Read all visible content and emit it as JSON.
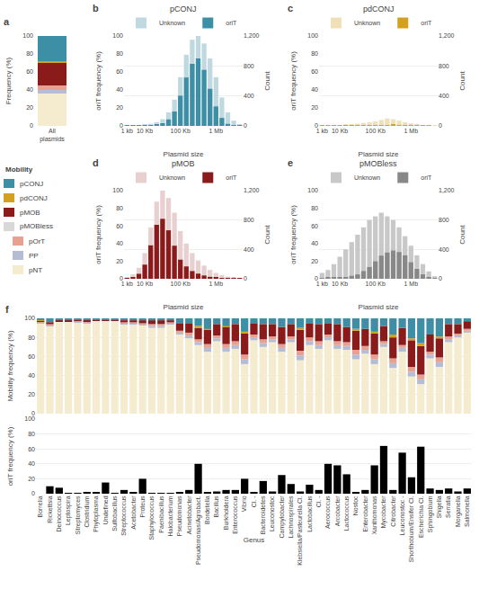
{
  "chart_data": [
    {
      "type": "bar",
      "stacked": true,
      "annotations": [
        "a"
      ],
      "categories": [
        "All\nplasmids"
      ],
      "ylabel": "Frequency (%)",
      "ylim": [
        0,
        100
      ],
      "yticks": [
        0,
        20,
        40,
        60,
        80,
        100
      ],
      "grid": false,
      "series": [
        {
          "name": "pNT",
          "color": "#f5ecd0",
          "values": [
            36
          ]
        },
        {
          "name": "PP",
          "color": "#b5bdd4",
          "values": [
            4
          ]
        },
        {
          "name": "pOrT",
          "color": "#e8a090",
          "values": [
            5
          ]
        },
        {
          "name": "pMOB",
          "color": "#8b1a1a",
          "values": [
            25
          ]
        },
        {
          "name": "pdCONJ",
          "color": "#d4a020",
          "values": [
            2
          ]
        },
        {
          "name": "pCONJ",
          "color": "#3d8fa5",
          "values": [
            28
          ]
        }
      ]
    },
    {
      "type": "legend",
      "title": "Mobility",
      "series": [
        {
          "name": "pCONJ",
          "color": "#3d8fa5"
        },
        {
          "name": "pdCONJ",
          "color": "#d4a020"
        },
        {
          "name": "pMOB",
          "color": "#8b1a1a"
        },
        {
          "name": "pMOBless",
          "color": "#d8d8d8",
          "series": [
            {
              "name": "pOrT",
              "color": "#e8a090"
            },
            {
              "name": "PP",
              "color": "#b5bdd4"
            },
            {
              "name": "pNT",
              "color": "#f5ecd0"
            }
          ]
        }
      ]
    },
    {
      "type": "bar",
      "stacked": false,
      "title": "pCONJ",
      "annotations": [
        "b"
      ],
      "categories": [
        "1 kb",
        null,
        null,
        "10 Kb",
        null,
        null,
        null,
        null,
        null,
        "100 Kb",
        null,
        null,
        null,
        null,
        null,
        "1 Mb",
        null,
        null,
        null,
        null
      ],
      "xlabel": "Plasmid size",
      "ylabel": "oriT frequency (%)",
      "y2label": "Count",
      "ylim": [
        0,
        100
      ],
      "yticks": [
        0,
        20,
        40,
        60,
        80,
        100
      ],
      "y2lim": [
        0,
        1200
      ],
      "y2ticks": [
        0,
        400,
        800,
        {
          "value": 1200,
          "label": "1,200"
        }
      ],
      "grid": true,
      "legend": "upper right",
      "series": [
        {
          "name": "Unknown",
          "color": "#c0d8e0",
          "axis": "y2",
          "values": [
            5,
            8,
            12,
            18,
            28,
            50,
            90,
            180,
            350,
            650,
            950,
            1150,
            1200,
            1100,
            900,
            650,
            380,
            180,
            70,
            20
          ]
        },
        {
          "name": "oriT",
          "color": "#3d8fa5",
          "axis": "y2",
          "values": [
            2.25,
            3.6,
            4.8,
            6.3,
            8.4,
            17.5,
            36,
            86.4,
            192.5,
            403,
            646,
            828,
            900,
            748,
            495,
            260,
            106.4,
            27,
            5.6,
            0.6
          ]
        }
      ]
    },
    {
      "type": "bar",
      "stacked": false,
      "title": "pdCONJ",
      "annotations": [
        "c"
      ],
      "categories": [
        "1 kb",
        null,
        null,
        "10 Kb",
        null,
        null,
        null,
        null,
        null,
        "100 Kb",
        null,
        null,
        null,
        null,
        null,
        "1 Mb",
        null,
        null,
        null,
        null
      ],
      "xlabel": "Plasmid size",
      "ylabel": "oriT frequency (%)",
      "y2label": "Count",
      "ylim": [
        0,
        100
      ],
      "yticks": [
        0,
        20,
        40,
        60,
        80,
        100
      ],
      "y2lim": [
        0,
        1200
      ],
      "y2ticks": [
        0,
        400,
        800,
        {
          "value": 1200,
          "label": "1,200"
        }
      ],
      "grid": true,
      "legend": "upper right",
      "series": [
        {
          "name": "Unknown",
          "color": "#f0e0b8",
          "axis": "y2",
          "values": [
            3,
            5,
            8,
            10,
            15,
            20,
            30,
            40,
            50,
            60,
            80,
            100,
            90,
            70,
            50,
            35,
            20,
            10,
            5,
            2
          ]
        },
        {
          "name": "oriT",
          "color": "#d4a020",
          "axis": "y2",
          "values": [
            1.08,
            1.75,
            2.4,
            2.5,
            3,
            3.6,
            4.5,
            4.8,
            5,
            4.8,
            8,
            12,
            13.5,
            8.4,
            5,
            2.8,
            1.2,
            0.4,
            0.1,
            0.02
          ]
        }
      ]
    },
    {
      "type": "bar",
      "stacked": false,
      "title": "pMOB",
      "annotations": [
        "d"
      ],
      "categories": [
        "1 kb",
        null,
        null,
        "10 Kb",
        null,
        null,
        null,
        null,
        null,
        "100 Kb",
        null,
        null,
        null,
        null,
        null,
        "1 Mb",
        null,
        null,
        null,
        null
      ],
      "xlabel": "Plasmid size",
      "ylabel": "oriT frequency (%)",
      "y2label": "Count",
      "ylim": [
        0,
        100
      ],
      "yticks": [
        0,
        20,
        40,
        60,
        80,
        100
      ],
      "y2lim": [
        0,
        1200
      ],
      "y2ticks": [
        0,
        400,
        800,
        {
          "value": 1200,
          "label": "1,200"
        }
      ],
      "grid": true,
      "legend": "upper right",
      "series": [
        {
          "name": "Unknown",
          "color": "#e8d0d0",
          "axis": "y2",
          "values": [
            20,
            60,
            150,
            350,
            700,
            1050,
            1200,
            1100,
            900,
            650,
            480,
            350,
            250,
            180,
            120,
            80,
            50,
            30,
            15,
            5
          ]
        },
        {
          "name": "oriT",
          "color": "#8b1a1a",
          "axis": "y2",
          "values": [
            5.6,
            21,
            67.5,
            192.5,
            455,
            735,
            816,
            660,
            450,
            260,
            168,
            105,
            70,
            45,
            26.4,
            14.4,
            7,
            3,
            0.9,
            0.15
          ]
        }
      ]
    },
    {
      "type": "bar",
      "stacked": false,
      "title": "pMOBless",
      "annotations": [
        "e"
      ],
      "categories": [
        "1 kb",
        null,
        null,
        "10 Kb",
        null,
        null,
        null,
        null,
        null,
        "100 Kb",
        null,
        null,
        null,
        null,
        null,
        "1 Mb",
        null,
        null,
        null,
        null
      ],
      "xlabel": "Plasmid size",
      "ylabel": "oriT frequency (%)",
      "y2label": "Count",
      "ylim": [
        0,
        100
      ],
      "yticks": [
        0,
        20,
        40,
        60,
        80,
        100
      ],
      "y2lim": [
        0,
        1200
      ],
      "y2ticks": [
        0,
        400,
        800,
        {
          "value": 1200,
          "label": "1,200"
        }
      ],
      "grid": true,
      "legend": "upper right",
      "series": [
        {
          "name": "Unknown",
          "color": "#c8c8c8",
          "axis": "y2",
          "values": [
            80,
            120,
            200,
            300,
            400,
            500,
            600,
            700,
            800,
            850,
            900,
            850,
            800,
            700,
            580,
            450,
            320,
            200,
            100,
            35
          ]
        },
        {
          "name": "oriT",
          "color": "#888888",
          "axis": "y2",
          "values": [
            12,
            14.4,
            20,
            24,
            24,
            40,
            60,
            105,
            160,
            238,
            315,
            357,
            384,
            364,
            319,
            225,
            134.4,
            60,
            18,
            2.8
          ]
        }
      ]
    },
    {
      "type": "bar",
      "stacked": true,
      "annotations": [
        "f"
      ],
      "tick_labels": "y",
      "categories": [
        "Borrelia",
        "Rickettsia",
        "Deinococcus",
        "Leptospira",
        "Streptomyces",
        "Clostridium",
        "Phytoplasma",
        "Undefined",
        "Sulfobacillus",
        "Streptococcus",
        "Acetobacter",
        "Proteus",
        "Staphylococcus",
        "Paenibacillus",
        "Halobacterium",
        "Pseudomonas",
        "Acinetobacter",
        "Pseudomonas/Agrobact.",
        "Bordetella",
        "Bacillus",
        "Burkholdera",
        "Enterococcus",
        "Vibrio",
        "Cl. -",
        "Bacteroidetes",
        "Leuconostoc",
        "Campylobacter",
        "Lachnospirales",
        "Klebsiella/Pasteurella Cl.",
        "Lactobacillus",
        "Cl. -",
        "Aerococcus",
        "Arcobacter",
        "Lactococcus",
        "Nostoc",
        "Enterobacter",
        "Xanthomonas",
        "Mycobacter",
        "Citrobacter",
        "Leuconostoc -",
        "Shorthobium/Ensifer Cl.",
        "Escherichia Cl.",
        "Sphingobium",
        "Shigella",
        "Serratia",
        "Morganella",
        "Salmonella"
      ],
      "ylabel": "Mobility frequency (%)",
      "ylim": [
        0,
        100
      ],
      "yticks": [
        0,
        20,
        40,
        60,
        80,
        100
      ],
      "grid": true,
      "series": [
        {
          "name": "pNT",
          "color": "#f5ecd0",
          "values": [
            95,
            92,
            97,
            97,
            96,
            95,
            98,
            98,
            98,
            94,
            94,
            93,
            90,
            90,
            94,
            83,
            79,
            72,
            65,
            76,
            65,
            68,
            52,
            77,
            70,
            75,
            65,
            75,
            56,
            72,
            68,
            77,
            68,
            67,
            57,
            63,
            52,
            70,
            48,
            65,
            39,
            31,
            58,
            49,
            75,
            80,
            85
          ]
        },
        {
          "name": "PP",
          "color": "#b5bdd4",
          "values": [
            1,
            1,
            0,
            0,
            1,
            1,
            0,
            0,
            0,
            1,
            1,
            1,
            2,
            2,
            1,
            2,
            3,
            3,
            4,
            3,
            4,
            4,
            5,
            3,
            4,
            3,
            4,
            3,
            5,
            4,
            4,
            3,
            4,
            4,
            5,
            4,
            5,
            3,
            5,
            4,
            5,
            5,
            4,
            5,
            3,
            2,
            2
          ]
        },
        {
          "name": "pOrT",
          "color": "#e8a090",
          "values": [
            1,
            1,
            0,
            0,
            1,
            1,
            0,
            0,
            0,
            1,
            1,
            1,
            2,
            2,
            1,
            2,
            3,
            3,
            4,
            3,
            4,
            4,
            5,
            3,
            4,
            3,
            4,
            3,
            5,
            4,
            4,
            3,
            4,
            4,
            5,
            4,
            5,
            3,
            5,
            3,
            5,
            5,
            3,
            5,
            3,
            2,
            2
          ]
        },
        {
          "name": "pMOB",
          "color": "#8b1a1a",
          "values": [
            1,
            2,
            1,
            1,
            1,
            1,
            1,
            1,
            1,
            2,
            2,
            3,
            4,
            4,
            2,
            8,
            10,
            12,
            15,
            12,
            18,
            18,
            22,
            12,
            16,
            13,
            18,
            13,
            22,
            15,
            18,
            12,
            18,
            16,
            20,
            18,
            22,
            16,
            22,
            18,
            28,
            30,
            18,
            20,
            13,
            10,
            8
          ]
        },
        {
          "name": "pdCONJ",
          "color": "#d4a020",
          "values": [
            1,
            0,
            0,
            0,
            0,
            0,
            0,
            0,
            0,
            0,
            0,
            0,
            0,
            0,
            0,
            0,
            0,
            2,
            1,
            0,
            1,
            0,
            2,
            0,
            0,
            0,
            0,
            0,
            2,
            0,
            0,
            0,
            0,
            0,
            2,
            0,
            2,
            0,
            3,
            0,
            2,
            3,
            0,
            2,
            0,
            0,
            0
          ]
        },
        {
          "name": "pCONJ",
          "color": "#3d8fa5",
          "values": [
            1,
            4,
            2,
            2,
            1,
            2,
            1,
            1,
            1,
            2,
            2,
            2,
            2,
            2,
            2,
            5,
            5,
            8,
            11,
            6,
            8,
            6,
            14,
            5,
            6,
            6,
            9,
            6,
            10,
            5,
            6,
            5,
            6,
            9,
            11,
            11,
            14,
            8,
            17,
            10,
            21,
            26,
            17,
            19,
            6,
            6,
            3
          ]
        }
      ]
    },
    {
      "type": "bar",
      "categories": [
        "Borrelia",
        "Rickettsia",
        "Deinococcus",
        "Leptospira",
        "Streptomyces",
        "Clostridium",
        "Phytoplasma",
        "Undefined",
        "Sulfobacillus",
        "Streptococcus",
        "Acetobacter",
        "Proteus",
        "Staphylococcus",
        "Paenibacillus",
        "Halobacterium",
        "Pseudomonas",
        "Acinetobacter",
        "Pseudomonas/Agrobact.",
        "Bordetella",
        "Bacillus",
        "Burkholdera",
        "Enterococcus",
        "Vibrio",
        "Cl. -",
        "Bacteroidetes",
        "Leuconostoc",
        "Campylobacter",
        "Lachnospirales",
        "Klebsiella/Pasteurella Cl.",
        "Lactobacillus",
        "Cl. -",
        "Aerococcus",
        "Arcobacter",
        "Lactococcus",
        "Nostoc",
        "Enterobacter",
        "Xanthomonas",
        "Mycobacter",
        "Citrobacter",
        "Leuconostoc -",
        "Shorthobium/Ensifer Cl.",
        "Escherichia Cl.",
        "Sphingobium",
        "Shigella",
        "Serratia",
        "Morganella",
        "Salmonella"
      ],
      "values": [
        0,
        10,
        8,
        1,
        1,
        2,
        2,
        15,
        1,
        5,
        2,
        20,
        1,
        1,
        1,
        2,
        5,
        40,
        2,
        3,
        5,
        5,
        20,
        2,
        17,
        3,
        25,
        13,
        3,
        12,
        5,
        40,
        38,
        26,
        2,
        5,
        38,
        64,
        5,
        55,
        22,
        63,
        7,
        5,
        7,
        3,
        7
      ],
      "color": "#000000",
      "xlabel": "Genus",
      "ylabel": "oriT frequency (%)",
      "ylim": [
        0,
        100
      ],
      "yticks": [
        0,
        20,
        40,
        60,
        80,
        100
      ],
      "grid": true
    }
  ]
}
